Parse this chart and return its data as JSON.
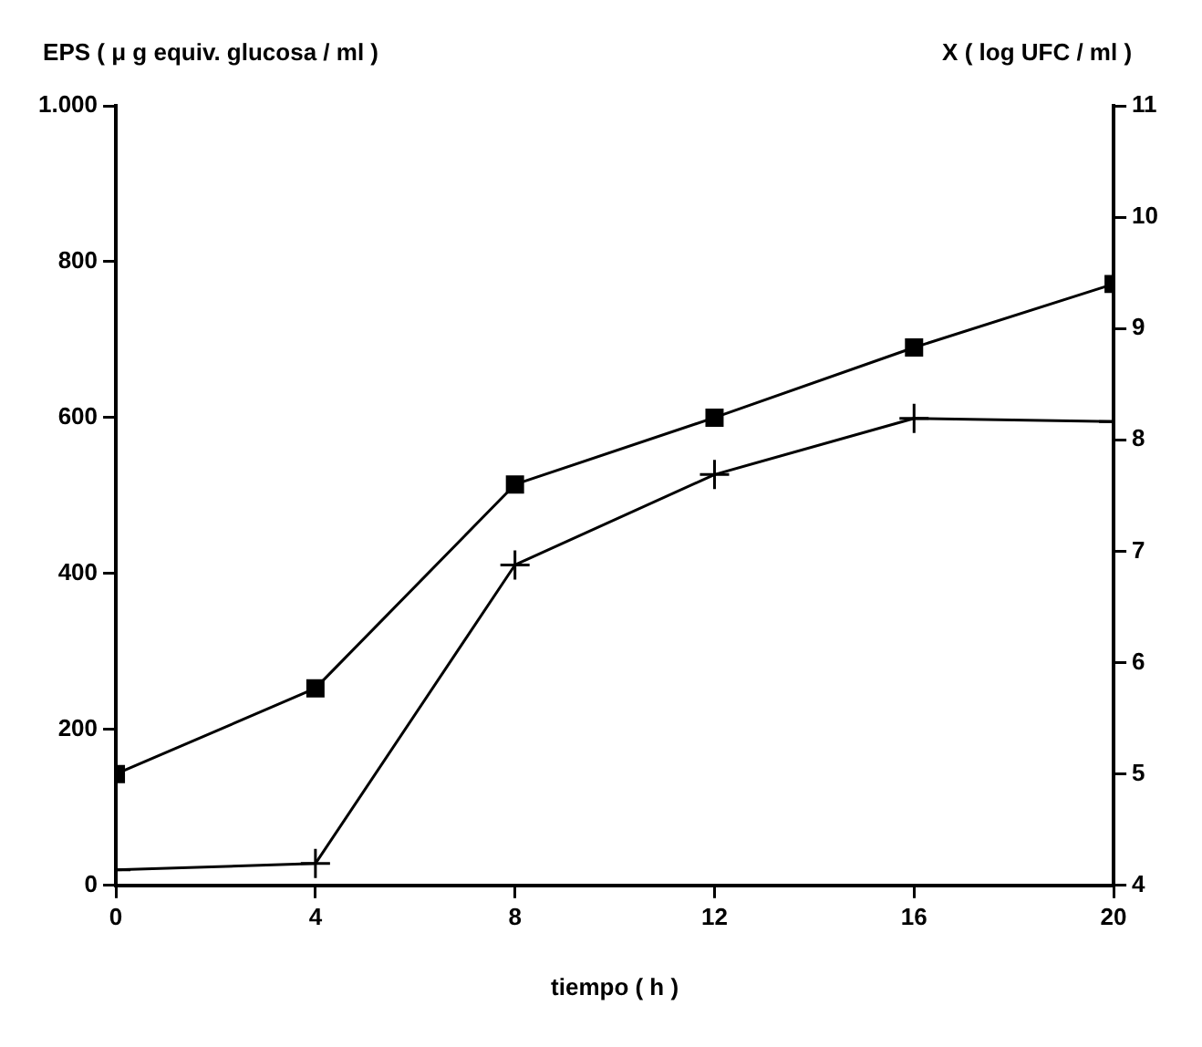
{
  "chart_data": {
    "type": "line",
    "xlabel": "tiempo ( h )",
    "ylabel": "EPS ( μ g equiv. glucosa / ml )",
    "y2label": "X ( log UFC / ml )",
    "x": [
      0,
      4,
      8,
      12,
      16,
      20
    ],
    "series": [
      {
        "color": "#000000",
        "marker": "square",
        "axis": "y2",
        "values": [
          5.0,
          5.77,
          7.6,
          8.2,
          8.83,
          9.4
        ]
      },
      {
        "color": "#000000",
        "marker": "cross",
        "values": [
          20,
          28,
          411,
          527,
          599,
          595
        ]
      }
    ],
    "xlim": [
      0,
      20
    ],
    "xticks": [
      0,
      4,
      8,
      12,
      16,
      20
    ],
    "ylim": [
      0,
      1000
    ],
    "yticks": [
      0,
      200,
      400,
      600,
      800,
      {
        "value": 1000,
        "label": "1.000"
      }
    ],
    "y2lim": [
      4,
      11
    ],
    "y2ticks": [
      4,
      5,
      6,
      7,
      8,
      9,
      10,
      11
    ],
    "grid": false,
    "legend": false
  }
}
